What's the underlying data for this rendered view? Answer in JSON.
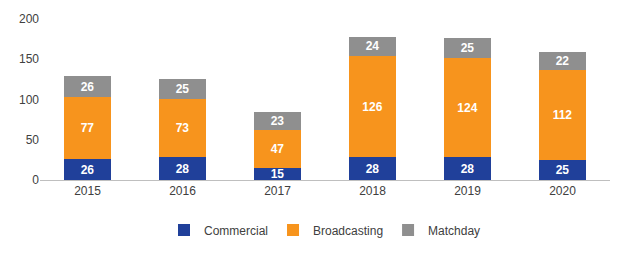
{
  "chart_data": {
    "type": "bar",
    "stacked": true,
    "data_labels": true,
    "grid": false,
    "legend": "bottom",
    "categories": [
      "2015",
      "2016",
      "2017",
      "2018",
      "2019",
      "2020"
    ],
    "series": [
      {
        "name": "Commercial",
        "color": "#20409a",
        "values": [
          26,
          28,
          15,
          28,
          28,
          25
        ]
      },
      {
        "name": "Broadcasting",
        "color": "#f7941d",
        "values": [
          77,
          73,
          47,
          126,
          124,
          112
        ]
      },
      {
        "name": "Matchday",
        "color": "#8f8f8f",
        "values": [
          26,
          25,
          23,
          24,
          25,
          22
        ]
      }
    ],
    "ylim": [
      0,
      200
    ],
    "yticks": [
      0,
      50,
      100,
      150,
      200
    ]
  }
}
